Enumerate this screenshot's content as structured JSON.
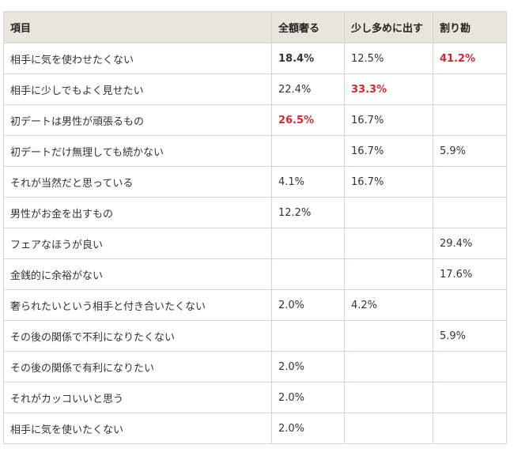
{
  "columns": [
    "項目",
    "全額奢る",
    "少し多めに出す",
    "割り勘"
  ],
  "accent_red": "#d8262e",
  "rows": [
    {
      "item": "相手に気を使わせたくない",
      "full": "18.4%",
      "more": "12.5%",
      "split": "41.2%"
    },
    {
      "item": "相手に少しでもよく見せたい",
      "full": "22.4%",
      "more": "33.3%",
      "split": ""
    },
    {
      "item": "初デートは男性が頑張るもの",
      "full": "26.5%",
      "more": "16.7%",
      "split": ""
    },
    {
      "item": "初デートだけ無理しても続かない",
      "full": "",
      "more": "16.7%",
      "split": "5.9%"
    },
    {
      "item": "それが当然だと思っている",
      "full": "4.1%",
      "more": "16.7%",
      "split": ""
    },
    {
      "item": "男性がお金を出すもの",
      "full": "12.2%",
      "more": "",
      "split": ""
    },
    {
      "item": "フェアなほうが良い",
      "full": "",
      "more": "",
      "split": "29.4%"
    },
    {
      "item": "金銭的に余裕がない",
      "full": "",
      "more": "",
      "split": "17.6%"
    },
    {
      "item": "奢られたいという相手と付き合いたくない",
      "full": "2.0%",
      "more": "4.2%",
      "split": ""
    },
    {
      "item": "その後の関係で不利になりたくない",
      "full": "",
      "more": "",
      "split": "5.9%"
    },
    {
      "item": "その後の関係で有利になりたい",
      "full": "2.0%",
      "more": "",
      "split": ""
    },
    {
      "item": "それがカッコいいと思う",
      "full": "2.0%",
      "more": "",
      "split": ""
    },
    {
      "item": "相手に気を使いたくない",
      "full": "2.0%",
      "more": "",
      "split": ""
    }
  ]
}
